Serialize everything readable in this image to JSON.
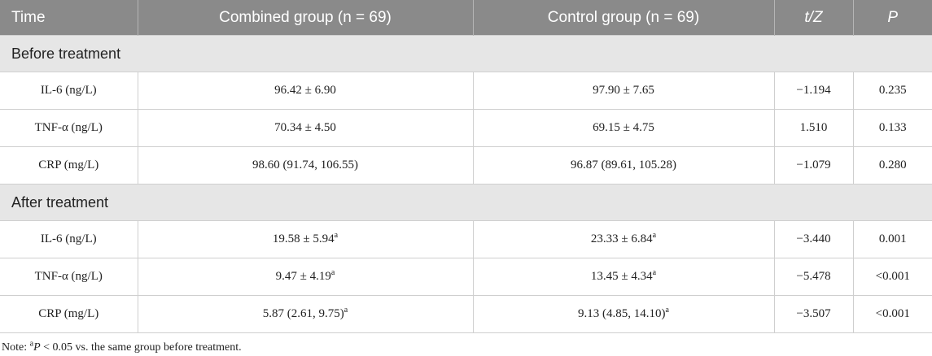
{
  "header": {
    "time": "Time",
    "combined": "Combined group (n = 69)",
    "control": "Control group (n = 69)",
    "tz": "t/Z",
    "p": "P"
  },
  "sections": [
    {
      "title": "Before treatment",
      "rows": [
        {
          "time": "IL-6 (ng/L)",
          "combined": "96.42 ± 6.90",
          "combined_sup": "",
          "control": "97.90 ± 7.65",
          "control_sup": "",
          "tz": "−1.194",
          "p": "0.235"
        },
        {
          "time": "TNF-α (ng/L)",
          "combined": "70.34 ± 4.50",
          "combined_sup": "",
          "control": "69.15 ± 4.75",
          "control_sup": "",
          "tz": "1.510",
          "p": "0.133"
        },
        {
          "time": "CRP (mg/L)",
          "combined": "98.60 (91.74, 106.55)",
          "combined_sup": "",
          "control": "96.87 (89.61, 105.28)",
          "control_sup": "",
          "tz": "−1.079",
          "p": "0.280"
        }
      ]
    },
    {
      "title": "After treatment",
      "rows": [
        {
          "time": "IL-6 (ng/L)",
          "combined": "19.58 ± 5.94",
          "combined_sup": "a",
          "control": "23.33 ± 6.84",
          "control_sup": "a",
          "tz": "−3.440",
          "p": "0.001"
        },
        {
          "time": "TNF-α (ng/L)",
          "combined": "9.47 ± 4.19",
          "combined_sup": "a",
          "control": "13.45 ± 4.34",
          "control_sup": "a",
          "tz": "−5.478",
          "p": "<0.001"
        },
        {
          "time": "CRP (mg/L)",
          "combined": "5.87 (2.61, 9.75)",
          "combined_sup": "a",
          "control": "9.13 (4.85, 14.10)",
          "control_sup": "a",
          "tz": "−3.507",
          "p": "<0.001"
        }
      ]
    }
  ],
  "note": {
    "prefix": "Note: ",
    "sup": "a",
    "p": "P",
    "text": " < 0.05 vs. the same group before treatment."
  }
}
